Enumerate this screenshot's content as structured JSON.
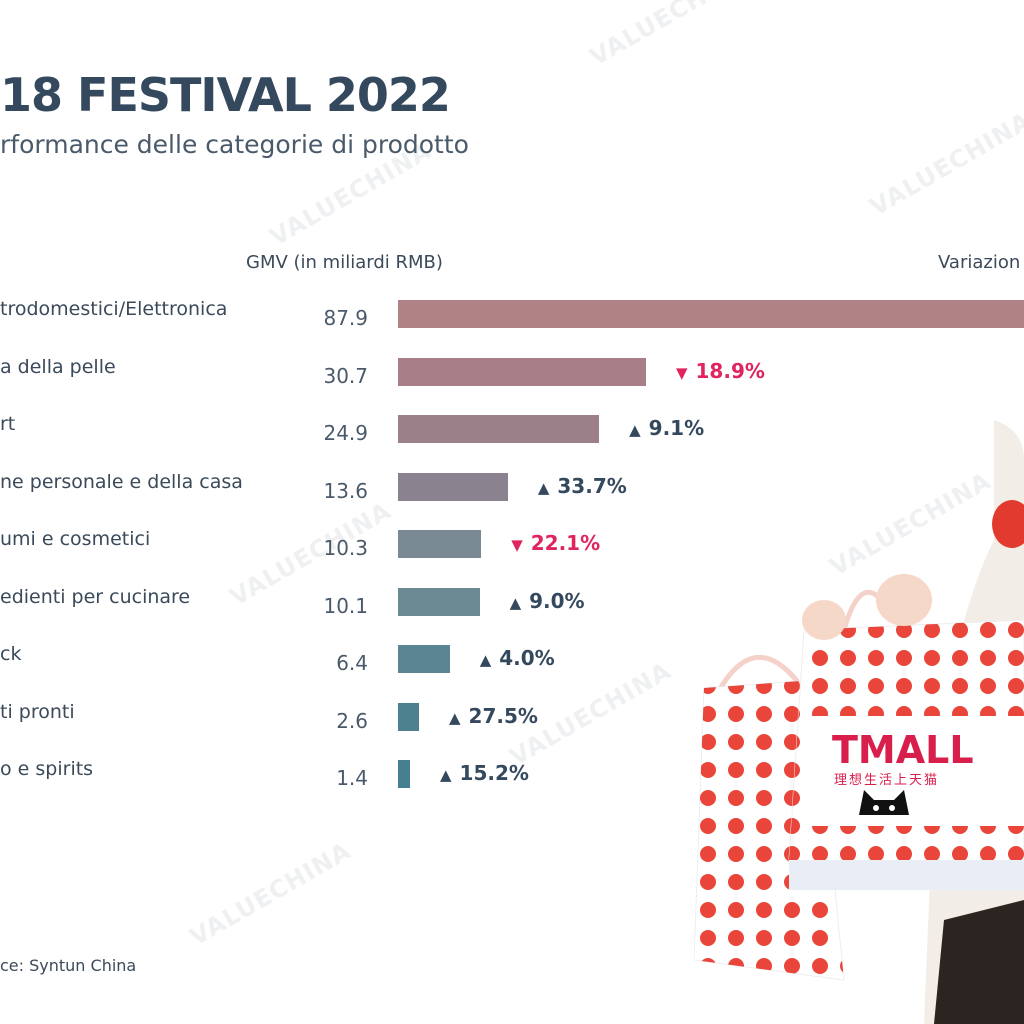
{
  "header": {
    "title": "18 FESTIVAL 2022",
    "subtitle": "rformance delle categorie di prodotto"
  },
  "columns": {
    "gmv_label": "GMV (in miliardi RMB)",
    "change_label": "Variazion"
  },
  "watermark_text": "VALUECHINA",
  "source": "ce: Syntun China",
  "chart_data": {
    "type": "bar",
    "orientation": "horizontal",
    "categories": [
      "trodomestici/Elettronica",
      "a della pelle",
      "rt",
      "ne personale e della casa",
      "umi e cosmetici",
      "edienti per cucinare",
      "ck",
      "ti pronti",
      "o e spirits"
    ],
    "values": [
      87.9,
      30.7,
      24.9,
      13.6,
      10.3,
      10.1,
      6.4,
      2.6,
      1.4
    ],
    "value_labels": [
      "87.9",
      "30.7",
      "24.9",
      "13.6",
      "10.3",
      "10.1",
      "6.4",
      "2.6",
      "1.4"
    ],
    "changes": [
      {
        "text": "",
        "direction": "none"
      },
      {
        "text": "18.9%",
        "direction": "down"
      },
      {
        "text": "9.1%",
        "direction": "up"
      },
      {
        "text": "33.7%",
        "direction": "up"
      },
      {
        "text": "22.1%",
        "direction": "down"
      },
      {
        "text": "9.0%",
        "direction": "up"
      },
      {
        "text": "4.0%",
        "direction": "up"
      },
      {
        "text": "27.5%",
        "direction": "up"
      },
      {
        "text": "15.2%",
        "direction": "up"
      }
    ],
    "bar_colors": [
      "#b08286",
      "#a87f89",
      "#9b8089",
      "#8b8290",
      "#7a8a94",
      "#6b8a93",
      "#5a8592",
      "#4e8190",
      "#468090"
    ],
    "up_color": "#34495e",
    "down_color": "#e0245e"
  },
  "photo": {
    "brand": "TMALL",
    "tagline": "理想生活上天猫",
    "bag_color": "#e9453b"
  }
}
